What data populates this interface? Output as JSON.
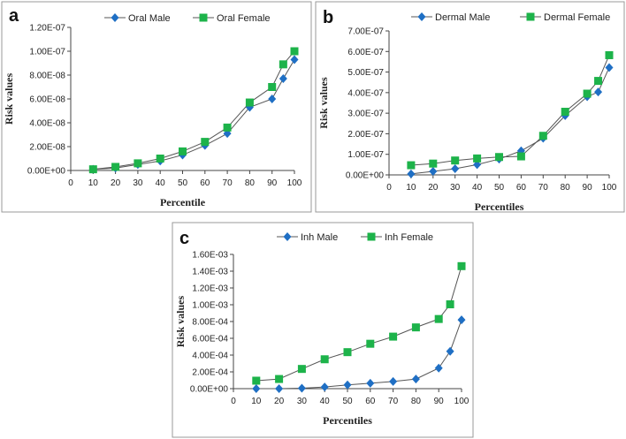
{
  "chart_data": [
    {
      "type": "line",
      "panel_label": "a",
      "xlabel": "Percentile",
      "ylabel": "Risk values",
      "xlim": [
        0,
        100
      ],
      "xticks": [
        0,
        10,
        20,
        30,
        40,
        50,
        60,
        70,
        80,
        90,
        100
      ],
      "ylim": [
        0,
        1.2e-07
      ],
      "yticks": [
        0,
        2e-08,
        4e-08,
        6e-08,
        8e-08,
        1e-07,
        1.2e-07
      ],
      "ytick_labels": [
        "0.00E+00",
        "2.00E-08",
        "4.00E-08",
        "6.00E-08",
        "8.00E-08",
        "1.00E-07",
        "1.20E-07"
      ],
      "legend": "top-center",
      "x": [
        10,
        20,
        30,
        40,
        50,
        60,
        70,
        80,
        90,
        95,
        100
      ],
      "series": [
        {
          "name": "Oral Male",
          "marker": "diamond",
          "color": "#1f6fc4",
          "values": [
            1e-09,
            2e-09,
            5e-09,
            8e-09,
            1.3e-08,
            2.1e-08,
            3.1e-08,
            5.3e-08,
            6e-08,
            7.7e-08,
            9.3e-08
          ]
        },
        {
          "name": "Oral Female",
          "marker": "square",
          "color": "#1db34a",
          "values": [
            1e-09,
            3e-09,
            6e-09,
            1e-08,
            1.6e-08,
            2.4e-08,
            3.6e-08,
            5.7e-08,
            7e-08,
            8.9e-08,
            1e-07
          ]
        }
      ]
    },
    {
      "type": "line",
      "panel_label": "b",
      "xlabel": "Percentiles",
      "ylabel": "Risk values",
      "xlim": [
        0,
        100
      ],
      "xticks": [
        0,
        10,
        20,
        30,
        40,
        50,
        60,
        70,
        80,
        90,
        100
      ],
      "ylim": [
        0,
        7e-07
      ],
      "yticks": [
        0,
        1e-07,
        2e-07,
        3e-07,
        4e-07,
        5e-07,
        6e-07,
        7e-07
      ],
      "ytick_labels": [
        "0.00E+00",
        "1.00E-07",
        "2.00E-07",
        "3.00E-07",
        "4.00E-07",
        "5.00E-07",
        "6.00E-07",
        "7.00E-07"
      ],
      "legend": "top-center",
      "x": [
        10,
        20,
        30,
        40,
        50,
        60,
        70,
        80,
        90,
        95,
        100
      ],
      "series": [
        {
          "name": "Dermal Male",
          "marker": "diamond",
          "color": "#1f6fc4",
          "values": [
            5e-09,
            1.7e-08,
            3e-08,
            5e-08,
            7.7e-08,
            1.17e-07,
            1.78e-07,
            2.88e-07,
            3.8e-07,
            4.03e-07,
            5.22e-07
          ]
        },
        {
          "name": "Dermal Female",
          "marker": "square",
          "color": "#1db34a",
          "values": [
            4.7e-08,
            5.5e-08,
            7e-08,
            8e-08,
            8.7e-08,
            9e-08,
            1.9e-07,
            3.07e-07,
            3.95e-07,
            4.57e-07,
            5.82e-07
          ]
        }
      ]
    },
    {
      "type": "line",
      "panel_label": "c",
      "xlabel": "Percentiles",
      "ylabel": "Risk values",
      "xlim": [
        0,
        100
      ],
      "xticks": [
        0,
        10,
        20,
        30,
        40,
        50,
        60,
        70,
        80,
        90,
        100
      ],
      "ylim": [
        0,
        0.0016
      ],
      "yticks": [
        0,
        0.0002,
        0.0004,
        0.0006,
        0.0008,
        0.001,
        0.0012,
        0.0014,
        0.0016
      ],
      "ytick_labels": [
        "0.00E+00",
        "2.00E-04",
        "4.00E-04",
        "6.00E-04",
        "8.00E-04",
        "1.00E-03",
        "1.20E-03",
        "1.40E-03",
        "1.60E-03"
      ],
      "legend": "top-center",
      "x": [
        10,
        20,
        30,
        40,
        50,
        60,
        70,
        80,
        90,
        95,
        100
      ],
      "series": [
        {
          "name": "Inh Male",
          "marker": "diamond",
          "color": "#1f6fc4",
          "values": [
            0,
            0,
            5e-06,
            2e-05,
            4.5e-05,
            6.5e-05,
            8.5e-05,
            0.000115,
            0.000245,
            0.000445,
            0.00082
          ]
        },
        {
          "name": "Inh Female",
          "marker": "square",
          "color": "#1db34a",
          "values": [
            9.5e-05,
            0.000115,
            0.000235,
            0.00035,
            0.000435,
            0.000535,
            0.00062,
            0.00073,
            0.00083,
            0.001005,
            0.00146
          ]
        }
      ]
    }
  ]
}
